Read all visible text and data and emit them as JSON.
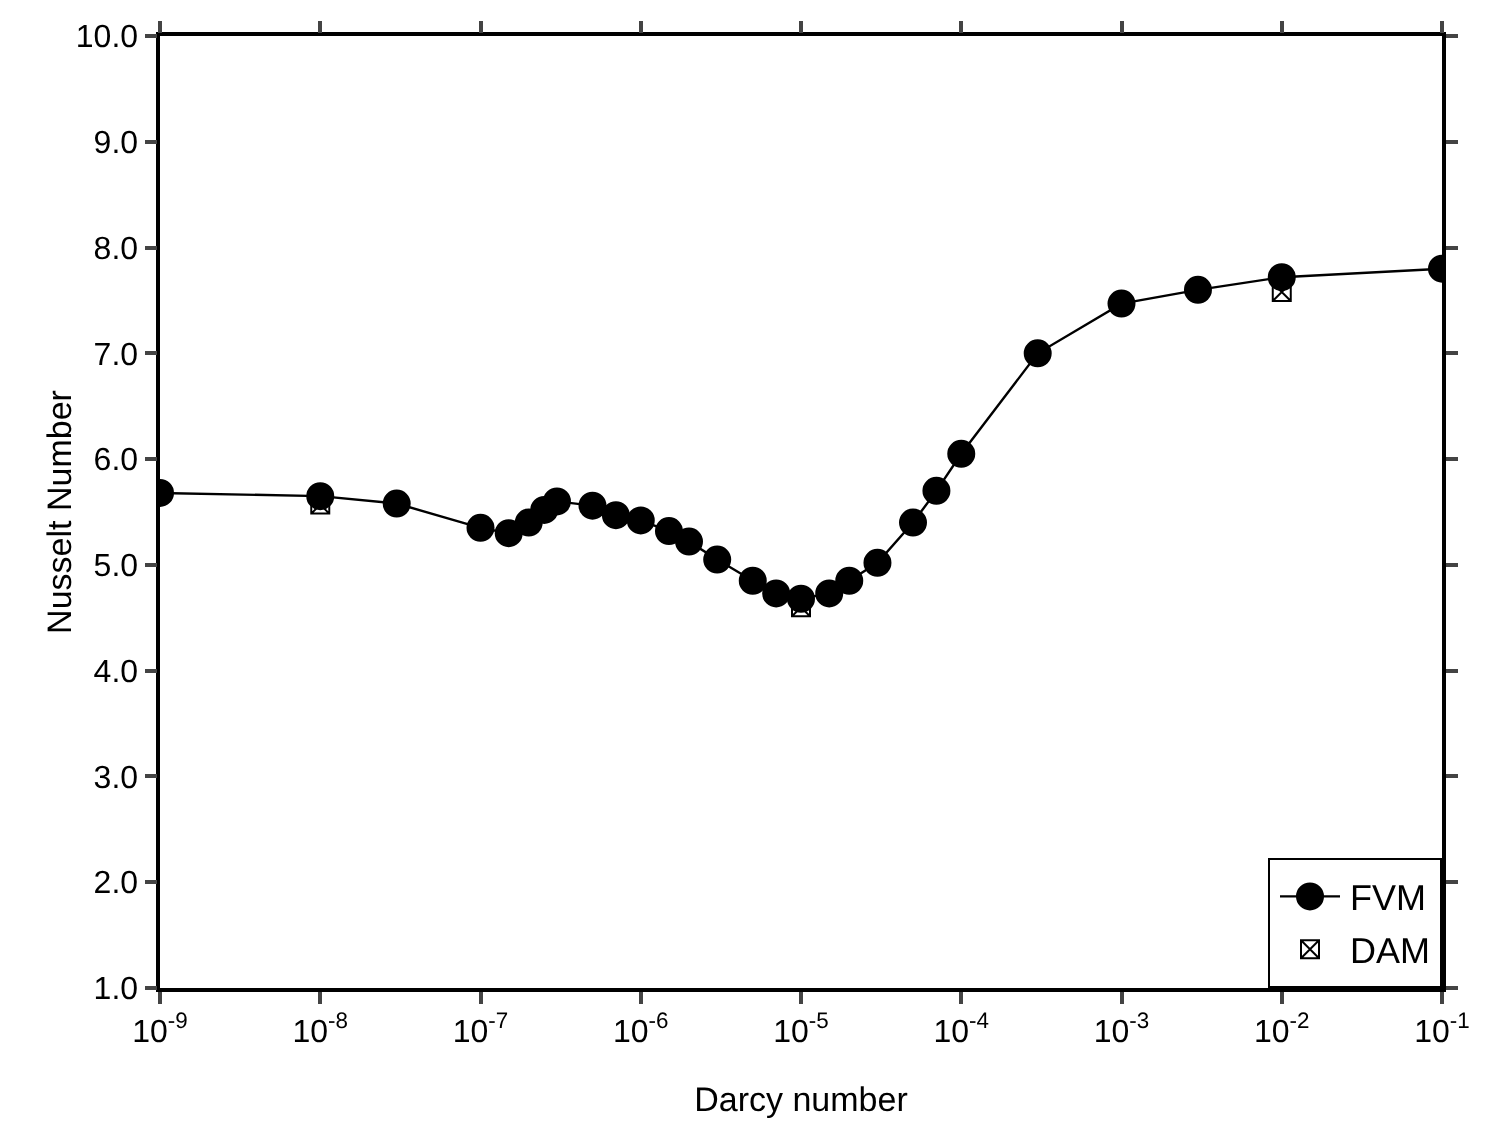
{
  "chart_data": {
    "type": "line",
    "xlabel": "Darcy number",
    "ylabel": "Nusselt Number",
    "log": "x",
    "xlim": [
      1e-09,
      0.1
    ],
    "xticks": [
      {
        "value": 1e-09,
        "label": "10$^{-9}$"
      },
      {
        "value": 1e-08,
        "label": "10$^{-8}$"
      },
      {
        "value": 1e-07,
        "label": "10$^{-7}$"
      },
      {
        "value": 1e-06,
        "label": "10$^{-6}$"
      },
      {
        "value": 1e-05,
        "label": "10$^{-5}$"
      },
      {
        "value": 0.0001,
        "label": "10$^{-4}$"
      },
      {
        "value": 0.001,
        "label": "10$^{-3}$"
      },
      {
        "value": 0.01,
        "label": "10$^{-2}$"
      },
      {
        "value": 0.1,
        "label": "10$^{-1}$"
      }
    ],
    "ylim": [
      1,
      10
    ],
    "yticks": [
      {
        "value": 1,
        "label": "1.0"
      },
      {
        "value": 2,
        "label": "2.0"
      },
      {
        "value": 3,
        "label": "3.0"
      },
      {
        "value": 4,
        "label": "4.0"
      },
      {
        "value": 5,
        "label": "5.0"
      },
      {
        "value": 6,
        "label": "6.0"
      },
      {
        "value": 7,
        "label": "7.0"
      },
      {
        "value": 8,
        "label": "8.0"
      },
      {
        "value": 9,
        "label": "9.0"
      },
      {
        "value": 10,
        "label": "10.0"
      }
    ],
    "grid": false,
    "legend": "bottom right",
    "series": [
      {
        "name": "FVM",
        "marker": "circle",
        "line_style": "solid",
        "color": "#000000",
        "x": [
          1e-09,
          1e-08,
          3e-08,
          1e-07,
          1.5e-07,
          2e-07,
          2.5e-07,
          3e-07,
          5e-07,
          7e-07,
          1e-06,
          1.5e-06,
          2e-06,
          3e-06,
          5e-06,
          7e-06,
          1e-05,
          1.5e-05,
          2e-05,
          3e-05,
          5e-05,
          7e-05,
          0.0001,
          0.0003,
          0.001,
          0.003,
          0.01,
          0.1
        ],
        "values": [
          5.68,
          5.65,
          5.58,
          5.35,
          5.3,
          5.4,
          5.52,
          5.6,
          5.56,
          5.47,
          5.42,
          5.32,
          5.22,
          5.05,
          4.85,
          4.73,
          4.68,
          4.73,
          4.85,
          5.02,
          5.4,
          5.7,
          6.05,
          7.0,
          7.47,
          7.6,
          7.72,
          7.8
        ]
      },
      {
        "name": "DAM",
        "type": "scatter",
        "marker": "cross",
        "color": "#000000",
        "x": [
          1e-08,
          1e-05,
          0.01
        ],
        "values": [
          5.57,
          4.6,
          7.58
        ]
      }
    ]
  }
}
